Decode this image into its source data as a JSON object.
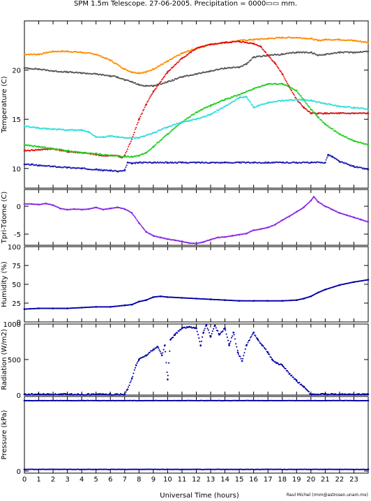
{
  "title": "SPM 1.5m Telescope. 27-06-2005. Precipitation = 0000▭▭ mm.",
  "xlabel": "Universal Time (hours)",
  "credit": "Raul Michel (rmm@astrosen.unam.mx)",
  "chart_data": [
    {
      "type": "line",
      "ylabel": "Temperature (C)",
      "ylim": [
        8,
        25
      ],
      "yticks": [
        10,
        15,
        20
      ],
      "xlim": [
        0,
        24
      ],
      "series": [
        {
          "color": "#ff8c00",
          "x": [
            0,
            1,
            2,
            3,
            4,
            5,
            6,
            7,
            7.5,
            8,
            8.5,
            9,
            10,
            11,
            12,
            13,
            14,
            15,
            16,
            17,
            18,
            19,
            20,
            20.5,
            21,
            22,
            23,
            24
          ],
          "y": [
            21.6,
            21.6,
            21.9,
            21.9,
            21.8,
            21.6,
            21,
            20.1,
            19.8,
            19.7,
            19.8,
            20.1,
            20.9,
            21.7,
            22.2,
            22.6,
            22.8,
            23.0,
            23.1,
            23.2,
            23.3,
            23.3,
            23.2,
            23.0,
            23.1,
            23.1,
            23.0,
            22.8
          ]
        },
        {
          "color": "#555555",
          "x": [
            0,
            1,
            2,
            3,
            4,
            5,
            6,
            6.5,
            7,
            7.5,
            8,
            8.5,
            9,
            10,
            11,
            12,
            13,
            14,
            15,
            15.5,
            16,
            17,
            18,
            19,
            20,
            20.5,
            21,
            22,
            23,
            24
          ],
          "y": [
            20.2,
            20.1,
            19.9,
            19.8,
            19.7,
            19.6,
            19.4,
            19.3,
            19.0,
            18.8,
            18.5,
            18.4,
            18.4,
            18.8,
            19.3,
            19.6,
            19.9,
            20.2,
            20.3,
            20.6,
            21.3,
            21.5,
            21.6,
            21.8,
            21.8,
            21.5,
            21.6,
            21.8,
            21.8,
            21.9
          ]
        },
        {
          "color": "#dd1111",
          "x": [
            0,
            1,
            2,
            3,
            4,
            5,
            5.5,
            6,
            6.5,
            6.8,
            7,
            7.5,
            8,
            8.5,
            9,
            10,
            11,
            12,
            13,
            14,
            15,
            16,
            16.5,
            17,
            17.5,
            18,
            18.5,
            19,
            19.5,
            20,
            20.5,
            21,
            22,
            23,
            24
          ],
          "y": [
            11.8,
            11.9,
            12.0,
            11.7,
            11.6,
            11.4,
            11.3,
            11.3,
            11.3,
            11.1,
            11.3,
            13.0,
            15.0,
            16.5,
            17.8,
            19.8,
            21.2,
            22.2,
            22.6,
            22.8,
            22.9,
            22.7,
            22.4,
            21.5,
            20.7,
            19.6,
            18.3,
            17.0,
            16.2,
            15.6,
            15.6,
            15.6,
            15.6,
            15.6,
            15.6
          ]
        },
        {
          "color": "#22cc22",
          "x": [
            0,
            1,
            2,
            3,
            4,
            5,
            6,
            7,
            7.5,
            8,
            8.5,
            9,
            10,
            11,
            12,
            13,
            14,
            15,
            16,
            17,
            18,
            19,
            19.5,
            20,
            20.5,
            21,
            22,
            23,
            24
          ],
          "y": [
            12.4,
            12.2,
            12.0,
            11.8,
            11.6,
            11.5,
            11.3,
            11.2,
            11.2,
            11.3,
            11.6,
            12.2,
            13.5,
            14.7,
            15.7,
            16.4,
            17.0,
            17.5,
            18.1,
            18.6,
            18.6,
            17.9,
            17.0,
            16.0,
            15.2,
            14.5,
            13.5,
            12.8,
            12.4
          ]
        },
        {
          "color": "#33dddd",
          "x": [
            0,
            1,
            2,
            3,
            3.5,
            4,
            4.5,
            5,
            5.5,
            6,
            6.5,
            7,
            7.5,
            8,
            9,
            10,
            11,
            12,
            13,
            14,
            15,
            15.5,
            16,
            17,
            18,
            19,
            20,
            21,
            22,
            23,
            24
          ],
          "y": [
            14.3,
            14.1,
            14.0,
            13.9,
            13.9,
            13.9,
            13.7,
            13.2,
            13.2,
            13.3,
            13.2,
            13.1,
            13.1,
            13.1,
            13.6,
            14.2,
            14.7,
            15.0,
            15.5,
            16.3,
            17.2,
            17.3,
            16.2,
            16.7,
            16.9,
            17.0,
            16.9,
            16.6,
            16.3,
            16.2,
            16.0
          ]
        },
        {
          "color": "#1a1ab0",
          "x": [
            0,
            0.5,
            1,
            2,
            3,
            4,
            5,
            5.5,
            6,
            6.5,
            7,
            7.2,
            7.5,
            8,
            9,
            10,
            11,
            12,
            13,
            14,
            15,
            16,
            17,
            18,
            19,
            20,
            21,
            21.2,
            21.5,
            22,
            23,
            24
          ],
          "y": [
            10.4,
            10.4,
            10.3,
            10.2,
            10.1,
            10.0,
            9.9,
            9.8,
            9.8,
            9.7,
            9.8,
            10.6,
            10.5,
            10.6,
            10.6,
            10.6,
            10.6,
            10.6,
            10.6,
            10.6,
            10.6,
            10.6,
            10.6,
            10.6,
            10.6,
            10.6,
            10.6,
            11.4,
            11.2,
            10.7,
            10.2,
            9.9
          ]
        }
      ]
    },
    {
      "type": "scatter",
      "ylabel": "Tpri-Tdome (C)",
      "ylim": [
        -7,
        3
      ],
      "yticks": [
        -5,
        0
      ],
      "xlim": [
        0,
        24
      ],
      "series": [
        {
          "color": "#8a2be2",
          "x": [
            0,
            0.5,
            1,
            1.5,
            2,
            2.5,
            3,
            3.5,
            4,
            4.5,
            5,
            5.5,
            6,
            6.5,
            7,
            7.5,
            8,
            8.5,
            9,
            9.5,
            10,
            10.5,
            11,
            11.5,
            12,
            12.5,
            13,
            13.5,
            14,
            14.5,
            15,
            15.5,
            16,
            16.5,
            17,
            17.5,
            18,
            18.5,
            19,
            19.5,
            20,
            20.2,
            20.5,
            21,
            21.5,
            22,
            22.5,
            23,
            23.5,
            24
          ],
          "y": [
            0.4,
            0.4,
            0.3,
            0.5,
            0.2,
            -0.4,
            -0.6,
            -0.5,
            -0.6,
            -0.5,
            -0.2,
            -0.6,
            -0.4,
            -0.2,
            -0.5,
            -1.2,
            -3.0,
            -4.6,
            -5.3,
            -5.6,
            -5.9,
            -6.1,
            -6.3,
            -6.6,
            -6.7,
            -6.4,
            -6.0,
            -5.6,
            -5.5,
            -5.3,
            -5.1,
            -4.9,
            -4.3,
            -4.1,
            -3.8,
            -3.3,
            -2.5,
            -1.8,
            -1.0,
            -0.2,
            1.0,
            1.7,
            0.8,
            0.0,
            -0.6,
            -1.2,
            -1.6,
            -2.0,
            -2.4,
            -2.8
          ]
        }
      ]
    },
    {
      "type": "scatter",
      "ylabel": "Humidity (%)",
      "ylim": [
        0,
        100
      ],
      "yticks": [
        0,
        25,
        50,
        75,
        100
      ],
      "xlim": [
        0,
        24
      ],
      "series": [
        {
          "color": "#0000a8",
          "x": [
            0,
            1,
            2,
            3,
            4,
            5,
            6,
            7,
            7.5,
            8,
            8.5,
            9,
            9.5,
            10,
            11,
            12,
            13,
            14,
            15,
            16,
            17,
            18,
            19,
            19.5,
            20,
            20.5,
            21,
            22,
            23,
            24
          ],
          "y": [
            17,
            18,
            18,
            18,
            19,
            20,
            20,
            22,
            23,
            27,
            29,
            33,
            34,
            33,
            32,
            31,
            30,
            29,
            28,
            28,
            28,
            28,
            29,
            31,
            34,
            39,
            43,
            49,
            53,
            56
          ]
        }
      ]
    },
    {
      "type": "scatter",
      "ylabel": "Radiation (W/m2)",
      "ylim": [
        0,
        1000
      ],
      "yticks": [
        0,
        500,
        1000
      ],
      "xlim": [
        0,
        24
      ],
      "series": [
        {
          "color": "#0000a8",
          "x": [
            0,
            2,
            4,
            6,
            7,
            7.2,
            7.5,
            7.8,
            8,
            8.5,
            9,
            9.3,
            9.6,
            9.8,
            10.0,
            10.2,
            10.5,
            11,
            11.5,
            12,
            12.3,
            12.5,
            12.7,
            13,
            13.3,
            13.6,
            14,
            14.3,
            14.6,
            14.9,
            15.2,
            15.5,
            16,
            16.3,
            16.6,
            17,
            17.3,
            17.6,
            18,
            18.5,
            19,
            19.5,
            20,
            21,
            22,
            23,
            24
          ],
          "y": [
            10,
            10,
            10,
            10,
            10,
            80,
            230,
            420,
            500,
            560,
            640,
            680,
            560,
            700,
            220,
            780,
            850,
            940,
            960,
            940,
            700,
            880,
            990,
            820,
            980,
            850,
            940,
            700,
            880,
            600,
            480,
            700,
            880,
            780,
            700,
            600,
            500,
            450,
            420,
            300,
            200,
            120,
            10,
            10,
            10,
            10,
            10
          ]
        }
      ]
    },
    {
      "type": "scatter",
      "ylabel": "Pressure (kPa)",
      "ylim": [
        -0.5,
        18
      ],
      "yticks": [
        0
      ],
      "xlim": [
        0,
        24
      ],
      "series": [
        {
          "color": "#0000a8",
          "x": [
            0,
            24
          ],
          "y": [
            17,
            17
          ]
        },
        {
          "color": "#0000a8",
          "x": [
            0,
            24
          ],
          "y": [
            0.4,
            0.4
          ]
        }
      ]
    }
  ]
}
